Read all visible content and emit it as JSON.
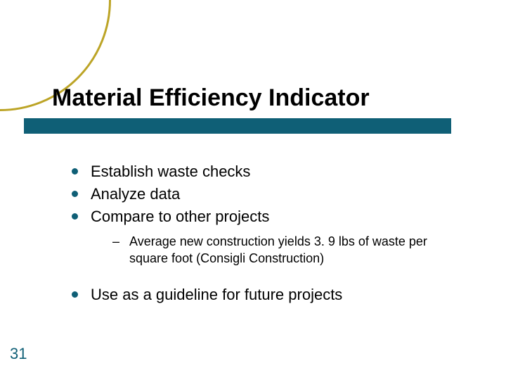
{
  "title": "Material Efficiency Indicator",
  "bullets": {
    "b1": "Establish waste checks",
    "b2": "Analyze data",
    "b3": "Compare to other projects",
    "b3_sub": "Average new construction yields 3. 9 lbs of waste per square foot (Consigli Construction)",
    "b4": "Use as a guideline for future projects"
  },
  "page_number": "31",
  "colors": {
    "accent": "#0f5f76",
    "arc": "#bca426",
    "text": "#000000",
    "background": "#ffffff"
  },
  "typography": {
    "title_fontsize": 34,
    "body_fontsize": 22,
    "sub_fontsize": 18,
    "pagenum_fontsize": 22,
    "title_weight": "bold"
  },
  "layout": {
    "slide_width": 720,
    "slide_height": 540,
    "underline_height": 22
  }
}
